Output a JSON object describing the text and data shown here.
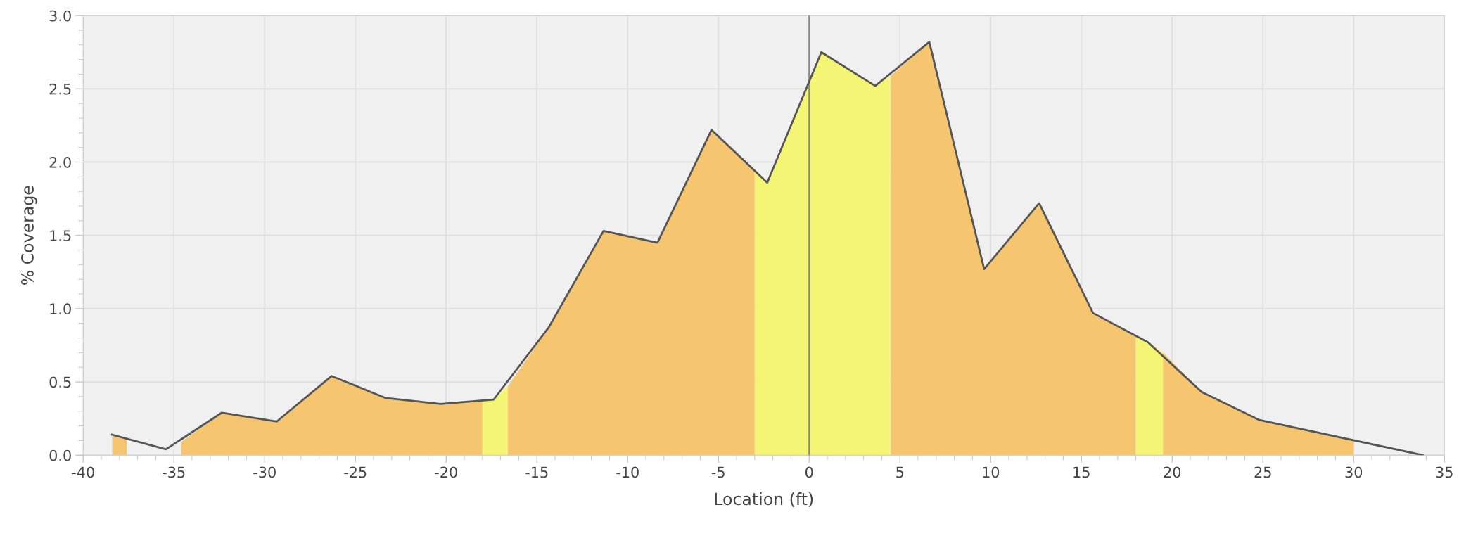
{
  "chart_data": {
    "type": "area",
    "xlabel": "Location (ft)",
    "ylabel": "% Coverage",
    "xlim": [
      -40,
      35
    ],
    "xticks": [
      -40,
      -35,
      -30,
      -25,
      -20,
      -15,
      -10,
      -5,
      0,
      5,
      10,
      15,
      20,
      25,
      30,
      35
    ],
    "ylim": [
      0,
      3
    ],
    "yticks": [
      {
        "value": 0,
        "label": "0.0"
      },
      {
        "value": 0.5,
        "label": "0.5"
      },
      {
        "value": 1,
        "label": "1.0"
      },
      {
        "value": 1.5,
        "label": "1.5"
      },
      {
        "value": 2,
        "label": "2.0"
      },
      {
        "value": 2.5,
        "label": "2.5"
      },
      {
        "value": 3,
        "label": "3.0"
      }
    ],
    "grid": true,
    "legend": false,
    "ref_lines": [
      {
        "axis": "x",
        "value": 0,
        "color": "#888888"
      }
    ],
    "series": [
      {
        "color": "#f5c570",
        "x": [
          -38.4,
          -37.6
        ],
        "values": [
          0.14,
          0.12
        ]
      },
      {
        "color": "#f5c570",
        "x": [
          -34.6,
          -32.36,
          -29.33,
          -26.31,
          -23.33,
          -20.31,
          -18.0
        ],
        "values": [
          0.09,
          0.29,
          0.23,
          0.54,
          0.39,
          0.35,
          0.37
        ]
      },
      {
        "color": "#f5f575",
        "x": [
          -18.0,
          -17.38,
          -16.6
        ],
        "values": [
          0.37,
          0.38,
          0.47
        ]
      },
      {
        "color": "#f5c570",
        "x": [
          -16.6,
          -14.36,
          -11.33,
          -8.36,
          -5.38,
          -3.0
        ],
        "values": [
          0.47,
          0.87,
          1.53,
          1.45,
          2.22,
          1.95
        ]
      },
      {
        "color": "#f5f575",
        "x": [
          -3.0,
          -2.31,
          0.67,
          3.64,
          4.5
        ],
        "values": [
          1.95,
          1.86,
          2.75,
          2.52,
          2.59
        ]
      },
      {
        "color": "#f5c570",
        "x": [
          4.5,
          6.62,
          9.64,
          12.67,
          15.64,
          18.0
        ],
        "values": [
          2.59,
          2.82,
          1.27,
          1.72,
          0.97,
          0.81
        ]
      },
      {
        "color": "#f5f575",
        "x": [
          18.0,
          18.67,
          19.5
        ],
        "values": [
          0.81,
          0.77,
          0.7
        ]
      },
      {
        "color": "#f5c570",
        "x": [
          19.5,
          21.64,
          24.8,
          30.0
        ],
        "values": [
          0.7,
          0.43,
          0.24,
          0.1
        ]
      },
      {
        "type": "line",
        "color": "#555555",
        "x": [
          -38.41,
          -35.44,
          -32.36,
          -29.33,
          -26.31,
          -23.33,
          -20.31,
          -17.38,
          -14.36,
          -11.33,
          -8.36,
          -5.38,
          -2.31,
          0.67,
          3.64,
          6.62,
          9.64,
          12.67,
          15.64,
          18.67,
          21.64,
          24.8,
          33.8
        ],
        "values": [
          0.14,
          0.04,
          0.29,
          0.23,
          0.54,
          0.39,
          0.35,
          0.38,
          0.87,
          1.53,
          1.45,
          2.22,
          1.86,
          2.75,
          2.52,
          2.82,
          1.27,
          1.72,
          0.97,
          0.77,
          0.43,
          0.24,
          0.0
        ]
      }
    ]
  }
}
